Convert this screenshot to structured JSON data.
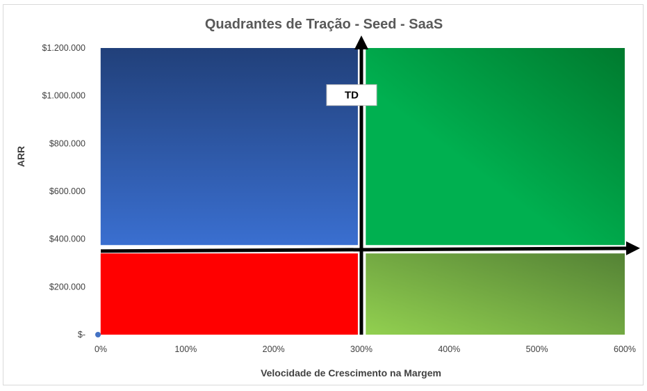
{
  "chart_data": {
    "type": "scatter",
    "title": "Quadrantes de Tração - Seed - SaaS",
    "xlabel": "Velocidade de Crescimento na Margem",
    "ylabel": "ARR",
    "xlim": [
      0,
      6
    ],
    "ylim": [
      0,
      1200000
    ],
    "x_ticks": [
      {
        "value": 0,
        "label": "0%"
      },
      {
        "value": 1,
        "label": "100%"
      },
      {
        "value": 2,
        "label": "200%"
      },
      {
        "value": 3,
        "label": "300%"
      },
      {
        "value": 4,
        "label": "400%"
      },
      {
        "value": 5,
        "label": "500%"
      },
      {
        "value": 6,
        "label": "600%"
      }
    ],
    "y_ticks": [
      {
        "value": 0,
        "label": "$-"
      },
      {
        "value": 200000,
        "label": "$200.000"
      },
      {
        "value": 400000,
        "label": "$400.000"
      },
      {
        "value": 600000,
        "label": "$600.000"
      },
      {
        "value": 800000,
        "label": "$800.000"
      },
      {
        "value": 1000000,
        "label": "$1.000.000"
      },
      {
        "value": 1200000,
        "label": "$1.200.000"
      }
    ],
    "divider_x": 3,
    "divider_y": 350000,
    "quadrants": [
      {
        "name": "top-left",
        "x": [
          0.03,
          2.96
        ],
        "y": [
          375000,
          1200000
        ],
        "color_top": "#21407a",
        "color_bottom": "#3a6fd0"
      },
      {
        "name": "top-right",
        "x": [
          3.05,
          6.0
        ],
        "y": [
          375000,
          1200000
        ],
        "color_top": "#007a2e",
        "color_bottom": "#00b050"
      },
      {
        "name": "bottom-left",
        "x": [
          0.03,
          2.96
        ],
        "y": [
          0,
          340000
        ],
        "color_top": "#ff0000",
        "color_bottom": "#ff0000"
      },
      {
        "name": "bottom-right",
        "x": [
          3.05,
          6.0
        ],
        "y": [
          0,
          340000
        ],
        "color_top": "#92d050",
        "color_bottom": "#548235"
      }
    ],
    "points": [
      {
        "x": 0,
        "y": 0,
        "color": "#4472c4"
      }
    ],
    "annotations": [
      {
        "text": "TD",
        "x": 3.0,
        "y": 1000000
      }
    ],
    "grid": false
  }
}
